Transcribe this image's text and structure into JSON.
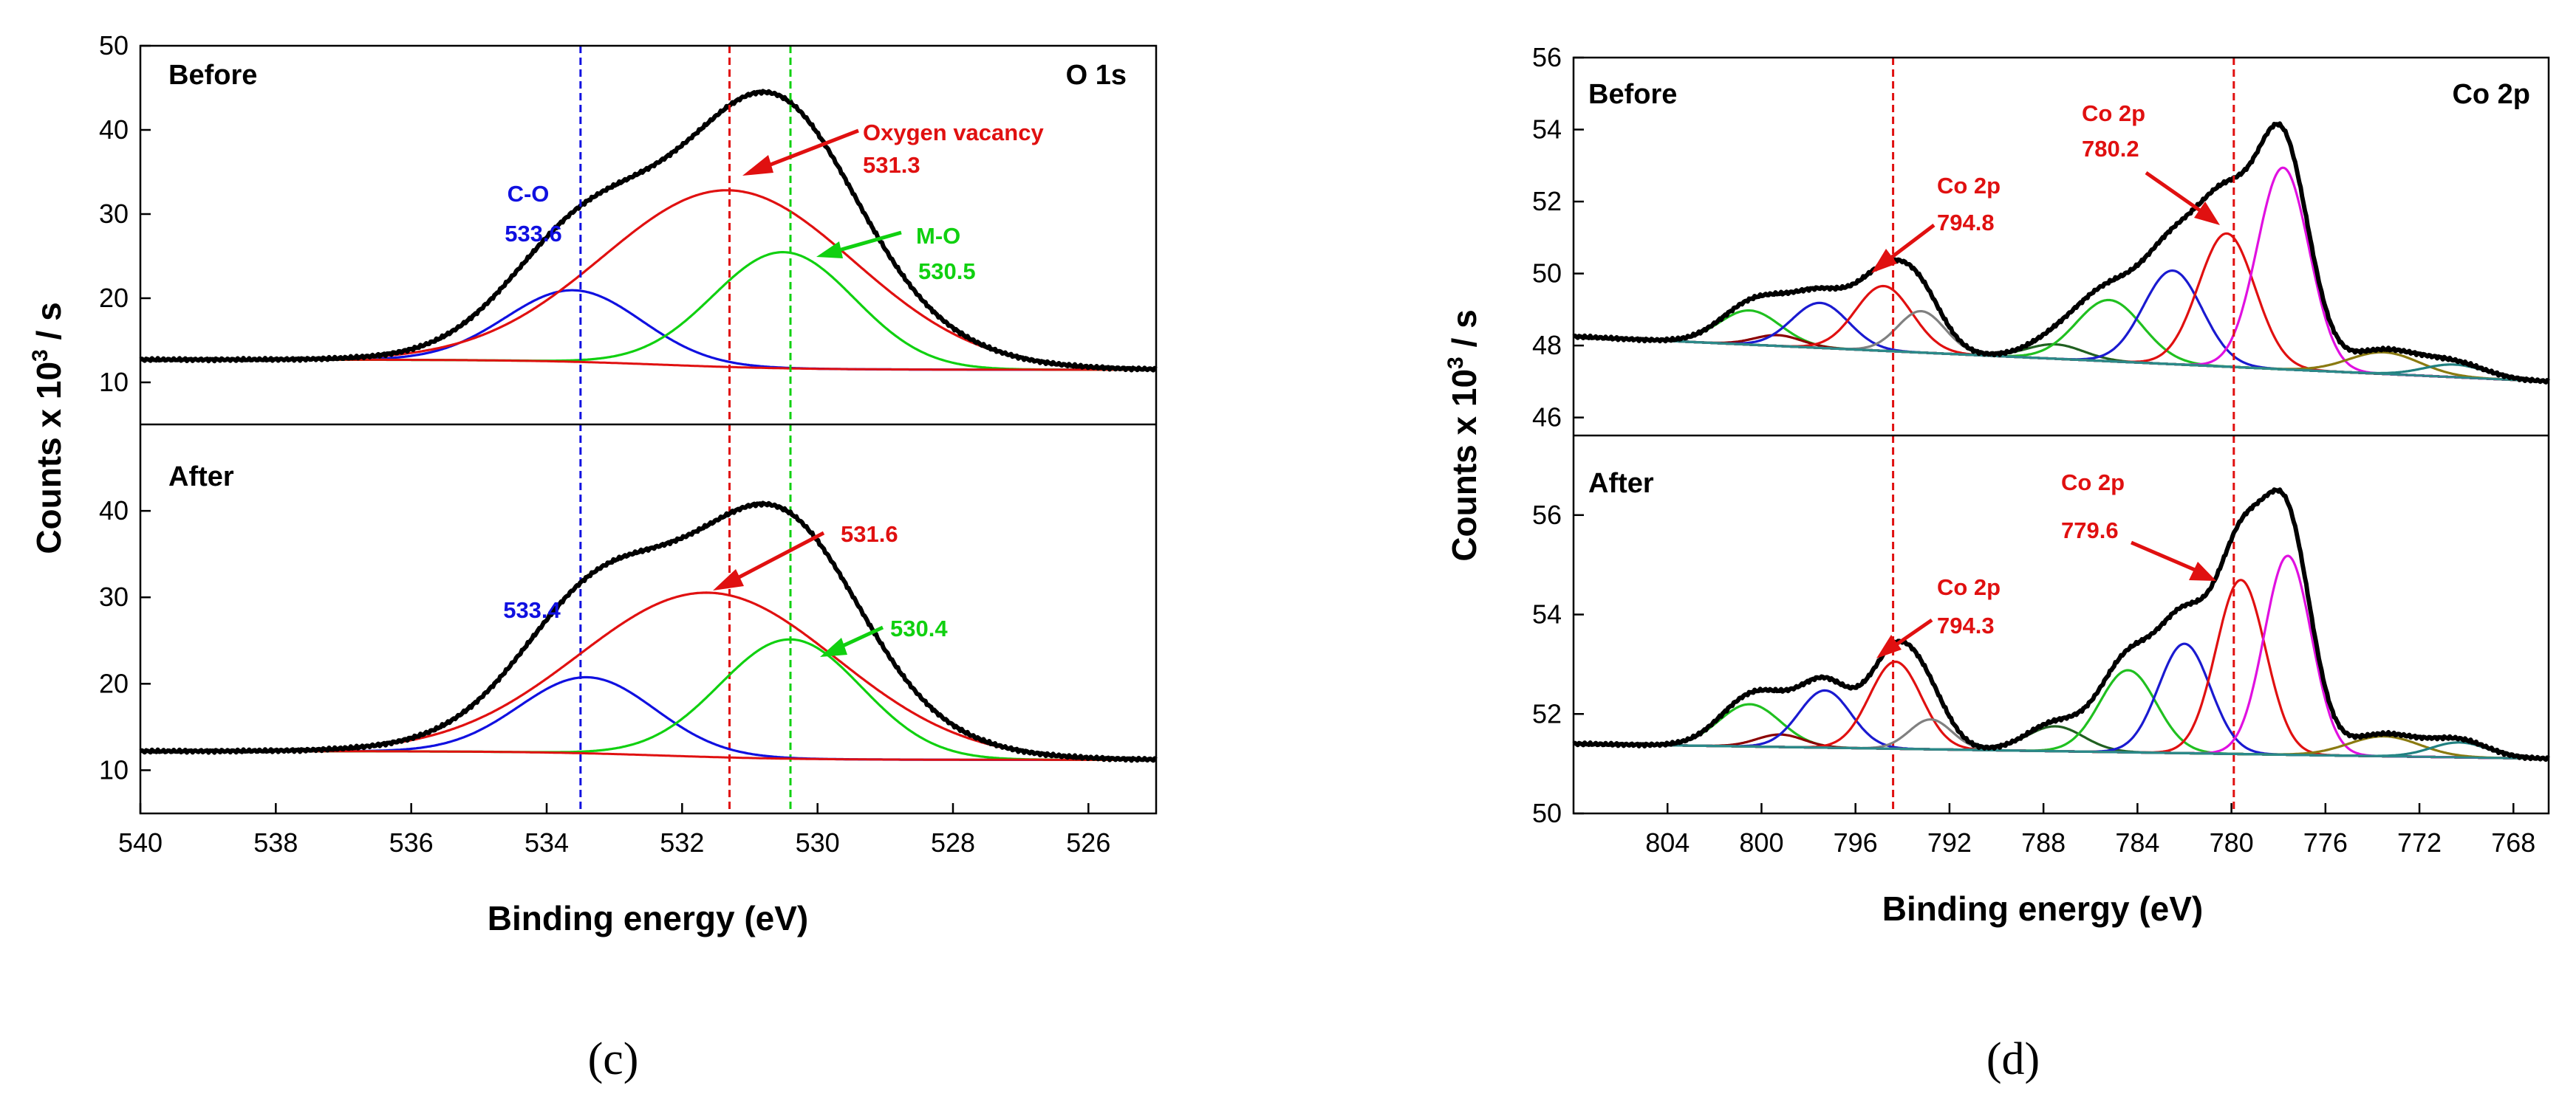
{
  "chart_data": [
    {
      "type": "line",
      "panel_label": "(c)",
      "spectrum": "O 1s",
      "xlabel": "Binding energy (eV)",
      "ylabel_main": "Counts x 10",
      "ylabel_sup": "3",
      "ylabel_tail": " / s",
      "xlim": [
        540,
        525
      ],
      "x_ticks": [
        540,
        538,
        536,
        534,
        532,
        530,
        528,
        526
      ],
      "reference_lines": [
        {
          "x": 533.5,
          "color": "#1010e0"
        },
        {
          "x": 531.3,
          "color": "#e01010"
        },
        {
          "x": 530.4,
          "color": "#10d010"
        }
      ],
      "subplots": [
        {
          "tag": "Before",
          "corner_label": "O 1s",
          "ylim": [
            5,
            50
          ],
          "y_ticks": [
            10,
            20,
            30,
            40,
            50
          ],
          "baseline": {
            "high": 12.7,
            "low": 11.5,
            "center": 532.3,
            "width": 1.0
          },
          "components": [
            {
              "name": "C-O",
              "center": 533.6,
              "height": 8.5,
              "sigma": 1.0,
              "color": "#1010e0"
            },
            {
              "name": "Oxygen vacancy",
              "center": 531.3,
              "height": 21.0,
              "sigma": 1.85,
              "color": "#e01010"
            },
            {
              "name": "M-O",
              "center": 530.5,
              "height": 13.8,
              "sigma": 1.05,
              "color": "#10d010"
            }
          ],
          "envelope_peak": 44.5,
          "annotations": [
            {
              "label": "C-O",
              "value": "533.6",
              "color": "#1010e0"
            },
            {
              "label": "Oxygen vacancy",
              "value": "531.3",
              "color": "#e01010"
            },
            {
              "label": "M-O",
              "value": "530.5",
              "color": "#10d010"
            }
          ]
        },
        {
          "tag": "After",
          "corner_label": "",
          "ylim": [
            5,
            50
          ],
          "y_ticks": [
            10,
            20,
            30,
            40
          ],
          "baseline": {
            "high": 12.2,
            "low": 11.2,
            "center": 532.3,
            "width": 1.0
          },
          "components": [
            {
              "name": "C-O",
              "center": 533.4,
              "height": 8.8,
              "sigma": 1.0,
              "color": "#1010e0"
            },
            {
              "name": "Oxygen vacancy",
              "center": 531.6,
              "height": 19.0,
              "sigma": 1.9,
              "color": "#e01010"
            },
            {
              "name": "M-O",
              "center": 530.4,
              "height": 13.8,
              "sigma": 1.05,
              "color": "#10d010"
            }
          ],
          "envelope_peak": 40.8,
          "annotations": [
            {
              "label": "",
              "value": "533.4",
              "color": "#1010e0"
            },
            {
              "label": "",
              "value": "531.6",
              "color": "#e01010"
            },
            {
              "label": "",
              "value": "530.4",
              "color": "#10d010"
            }
          ]
        }
      ]
    },
    {
      "type": "line",
      "panel_label": "(d)",
      "spectrum": "Co 2p",
      "xlabel": "Binding energy (eV)",
      "ylabel_main": "Counts x 10",
      "ylabel_sup": "3",
      "ylabel_tail": " / s",
      "xlim": [
        808,
        766.5
      ],
      "x_ticks": [
        804,
        800,
        796,
        792,
        788,
        784,
        780,
        776,
        772,
        768
      ],
      "reference_lines": [
        {
          "x": 794.4,
          "color": "#e01010"
        },
        {
          "x": 779.9,
          "color": "#e01010"
        }
      ],
      "subplots": [
        {
          "tag": "Before",
          "corner_label": "Co 2p",
          "ylim": [
            45.5,
            56
          ],
          "y_ticks": [
            46,
            48,
            50,
            52,
            54,
            56
          ],
          "baseline": {
            "x0": 808,
            "y0": 48.25,
            "x1": 766.5,
            "y1": 47.0
          },
          "components": [
            {
              "center": 800.5,
              "height": 0.95,
              "sigma": 1.3,
              "color": "#20c020"
            },
            {
              "center": 799.3,
              "height": 0.3,
              "sigma": 1.0,
              "color": "#8b0000"
            },
            {
              "center": 797.5,
              "height": 1.25,
              "sigma": 1.2,
              "color": "#1a1ad0"
            },
            {
              "center": 794.8,
              "height": 1.8,
              "sigma": 1.2,
              "color": "#e01010"
            },
            {
              "center": 793.2,
              "height": 1.15,
              "sigma": 1.0,
              "color": "#808080"
            },
            {
              "center": 787.5,
              "height": 0.4,
              "sigma": 1.2,
              "color": "#206020"
            },
            {
              "center": 785.2,
              "height": 1.7,
              "sigma": 1.4,
              "color": "#20c020"
            },
            {
              "center": 782.5,
              "height": 2.6,
              "sigma": 1.25,
              "color": "#1a1ad0"
            },
            {
              "center": 780.2,
              "height": 3.7,
              "sigma": 1.2,
              "color": "#e01010"
            },
            {
              "center": 777.8,
              "height": 5.6,
              "sigma": 1.1,
              "color": "#e010e0"
            },
            {
              "center": 773.5,
              "height": 0.6,
              "sigma": 1.5,
              "color": "#8a7a10"
            },
            {
              "center": 770.5,
              "height": 0.35,
              "sigma": 1.3,
              "color": "#208080"
            }
          ],
          "envelope_peak": 54.15,
          "annotations": [
            {
              "label": "Co 2p",
              "value": "794.8",
              "color": "#e01010"
            },
            {
              "label": "Co 2p",
              "value": "780.2",
              "color": "#e01010"
            }
          ]
        },
        {
          "tag": "After",
          "corner_label": "",
          "ylim": [
            50,
            57.6
          ],
          "y_ticks": [
            50,
            52,
            54,
            56
          ],
          "baseline": {
            "x0": 808,
            "y0": 51.4,
            "x1": 766.5,
            "y1": 51.1
          },
          "components": [
            {
              "center": 800.5,
              "height": 0.85,
              "sigma": 1.3,
              "color": "#20c020"
            },
            {
              "center": 799.2,
              "height": 0.25,
              "sigma": 1.0,
              "color": "#8b0000"
            },
            {
              "center": 797.3,
              "height": 1.15,
              "sigma": 1.1,
              "color": "#1a1ad0"
            },
            {
              "center": 794.3,
              "height": 1.75,
              "sigma": 1.1,
              "color": "#e01010"
            },
            {
              "center": 792.8,
              "height": 0.6,
              "sigma": 0.9,
              "color": "#808080"
            },
            {
              "center": 787.5,
              "height": 0.5,
              "sigma": 1.2,
              "color": "#206020"
            },
            {
              "center": 784.4,
              "height": 1.65,
              "sigma": 1.2,
              "color": "#20c020"
            },
            {
              "center": 782.0,
              "height": 2.2,
              "sigma": 1.1,
              "color": "#1a1ad0"
            },
            {
              "center": 779.6,
              "height": 3.5,
              "sigma": 1.05,
              "color": "#e01010"
            },
            {
              "center": 777.6,
              "height": 4.0,
              "sigma": 1.0,
              "color": "#e010e0"
            },
            {
              "center": 773.5,
              "height": 0.4,
              "sigma": 1.5,
              "color": "#8a7a10"
            },
            {
              "center": 770.3,
              "height": 0.3,
              "sigma": 1.2,
              "color": "#208080"
            }
          ],
          "envelope_peak": 56.5,
          "annotations": [
            {
              "label": "Co 2p",
              "value": "794.3",
              "color": "#e01010"
            },
            {
              "label": "Co 2p",
              "value": "779.6",
              "color": "#e01010"
            }
          ]
        }
      ]
    }
  ]
}
